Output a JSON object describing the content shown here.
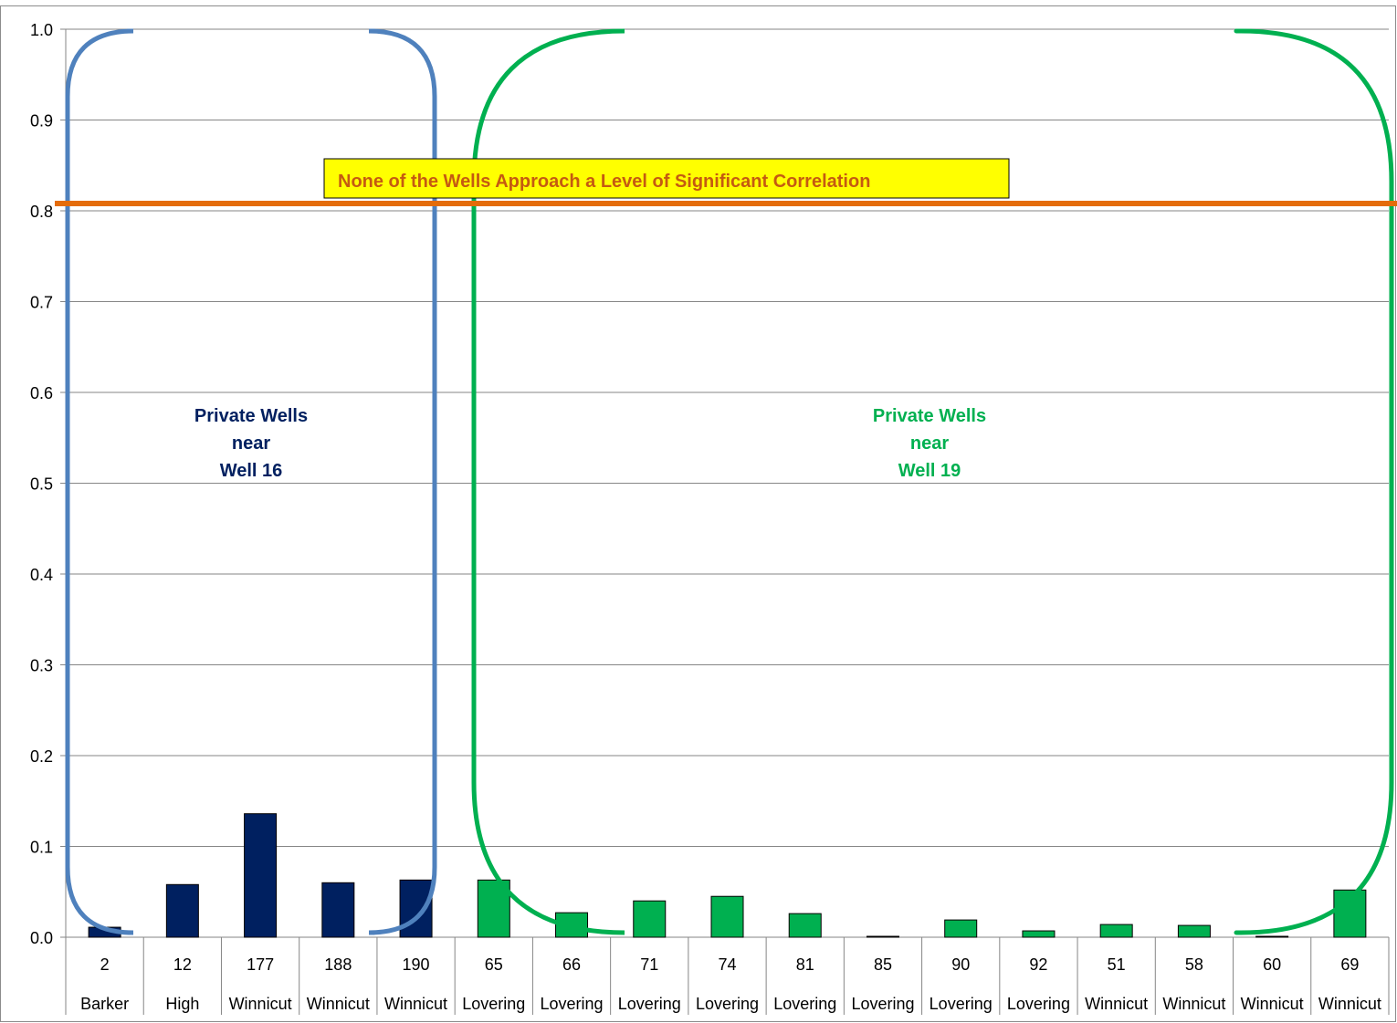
{
  "chart_data": {
    "type": "bar",
    "title": "",
    "xlabel": "",
    "ylabel": "",
    "ylim": [
      0,
      1.0
    ],
    "yticks": [
      "0.0",
      "0.1",
      "0.2",
      "0.3",
      "0.4",
      "0.5",
      "0.6",
      "0.7",
      "0.8",
      "0.9",
      "1.0"
    ],
    "grid": true,
    "legend": "none",
    "categories": [
      {
        "well": "2",
        "road": "Barker"
      },
      {
        "well": "12",
        "road": "High"
      },
      {
        "well": "177",
        "road": "Winnicut"
      },
      {
        "well": "188",
        "road": "Winnicut"
      },
      {
        "well": "190",
        "road": "Winnicut"
      },
      {
        "well": "65",
        "road": "Lovering"
      },
      {
        "well": "66",
        "road": "Lovering"
      },
      {
        "well": "71",
        "road": "Lovering"
      },
      {
        "well": "74",
        "road": "Lovering"
      },
      {
        "well": "81",
        "road": "Lovering"
      },
      {
        "well": "85",
        "road": "Lovering"
      },
      {
        "well": "90",
        "road": "Lovering"
      },
      {
        "well": "92",
        "road": "Lovering"
      },
      {
        "well": "51",
        "road": "Winnicut"
      },
      {
        "well": "58",
        "road": "Winnicut"
      },
      {
        "well": "60",
        "road": "Winnicut"
      },
      {
        "well": "69",
        "road": "Winnicut"
      }
    ],
    "values": [
      0.011,
      0.058,
      0.136,
      0.06,
      0.063,
      0.063,
      0.027,
      0.04,
      0.045,
      0.026,
      0.001,
      0.019,
      0.007,
      0.014,
      0.013,
      0.001,
      0.052
    ],
    "bar_colors": [
      "#002060",
      "#002060",
      "#002060",
      "#002060",
      "#002060",
      "#00b050",
      "#00b050",
      "#00b050",
      "#00b050",
      "#00b050",
      "#00b050",
      "#00b050",
      "#00b050",
      "#00b050",
      "#00b050",
      "#00b050",
      "#00b050"
    ],
    "threshold": {
      "value": 0.808,
      "color": "#e46c0a"
    },
    "groups": [
      {
        "lines": [
          "Private Wells",
          "near",
          "Well 16"
        ],
        "color": "#002060",
        "bracket_color": "#4f81bd",
        "from_index": 0,
        "to_index": 4
      },
      {
        "lines": [
          "Private Wells",
          "near",
          "Well 19"
        ],
        "color": "#00b050",
        "bracket_color": "#00b050",
        "from_index": 5,
        "to_index": 16
      }
    ],
    "callout": {
      "text": "None of the Wells Approach a Level of Significant Correlation",
      "background": "#ffff00",
      "color": "#c55a11"
    }
  }
}
